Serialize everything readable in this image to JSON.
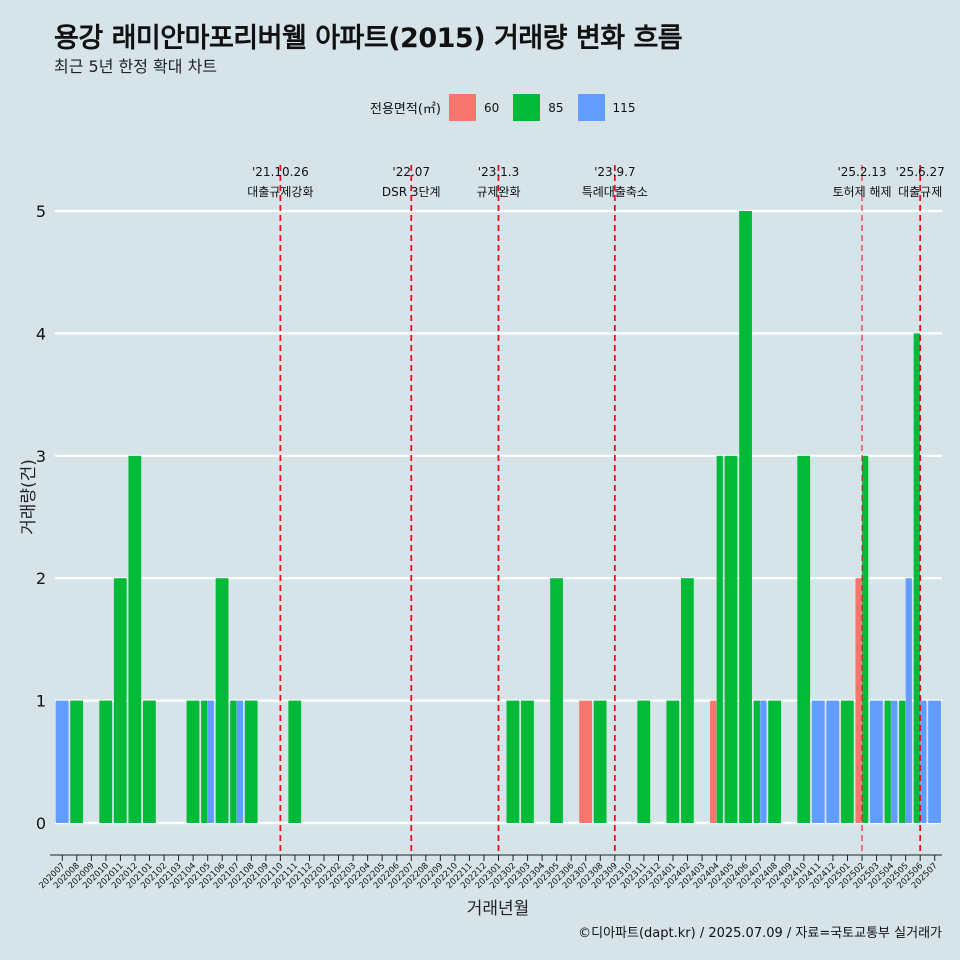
{
  "title": "용강 래미안마포리버웰 아파트(2015) 거래량 변화 흐름",
  "subtitle": "최근 5년 한정 확대 차트",
  "caption": "©디아파트(dapt.kr) / 2025.07.09 / 자료=국토교통부 실거래가",
  "legend": {
    "title": "전용면적(㎡)",
    "items": [
      {
        "label": "60",
        "color": "#f8766d"
      },
      {
        "label": "85",
        "color": "#00ba38"
      },
      {
        "label": "115",
        "color": "#619cff"
      }
    ]
  },
  "chart_data": {
    "type": "bar",
    "xlabel": "거래년월",
    "ylabel": "거래량(건)",
    "ylim": [
      0,
      5
    ],
    "yticks": [
      0,
      1,
      2,
      3,
      4,
      5
    ],
    "grid": true,
    "categories": [
      "202007",
      "202008",
      "202009",
      "202010",
      "202011",
      "202012",
      "202101",
      "202102",
      "202103",
      "202104",
      "202105",
      "202106",
      "202107",
      "202108",
      "202109",
      "202110",
      "202111",
      "202112",
      "202201",
      "202202",
      "202203",
      "202204",
      "202205",
      "202206",
      "202207",
      "202208",
      "202209",
      "202210",
      "202211",
      "202212",
      "202301",
      "202302",
      "202303",
      "202304",
      "202305",
      "202306",
      "202307",
      "202308",
      "202309",
      "202310",
      "202311",
      "202312",
      "202401",
      "202402",
      "202403",
      "202404",
      "202405",
      "202406",
      "202407",
      "202408",
      "202409",
      "202410",
      "202411",
      "202412",
      "202501",
      "202502",
      "202503",
      "202504",
      "202505",
      "202506",
      "202507"
    ],
    "series": [
      {
        "name": "60",
        "color": "#f8766d",
        "values": [
          0,
          0,
          0,
          0,
          0,
          0,
          0,
          0,
          0,
          0,
          0,
          0,
          0,
          0,
          0,
          0,
          0,
          0,
          0,
          0,
          0,
          0,
          0,
          0,
          0,
          0,
          0,
          0,
          0,
          0,
          0,
          0,
          0,
          0,
          0,
          0,
          1,
          0,
          0,
          0,
          0,
          0,
          0,
          0,
          0,
          1,
          0,
          0,
          0,
          0,
          0,
          0,
          0,
          0,
          0,
          2,
          0,
          0,
          0,
          0,
          0
        ]
      },
      {
        "name": "85",
        "color": "#00ba38",
        "values": [
          0,
          1,
          0,
          1,
          2,
          3,
          1,
          0,
          0,
          1,
          1,
          2,
          1,
          1,
          0,
          0,
          1,
          0,
          0,
          0,
          0,
          0,
          0,
          0,
          0,
          0,
          0,
          0,
          0,
          0,
          0,
          1,
          1,
          0,
          2,
          0,
          0,
          1,
          0,
          0,
          1,
          0,
          1,
          2,
          0,
          3,
          3,
          5,
          1,
          1,
          0,
          3,
          0,
          0,
          1,
          3,
          0,
          1,
          1,
          4,
          0
        ]
      },
      {
        "name": "115",
        "color": "#619cff",
        "values": [
          1,
          0,
          0,
          0,
          0,
          0,
          0,
          0,
          0,
          0,
          1,
          0,
          1,
          0,
          0,
          0,
          0,
          0,
          0,
          0,
          0,
          0,
          0,
          0,
          0,
          0,
          0,
          0,
          0,
          0,
          0,
          0,
          0,
          0,
          0,
          0,
          0,
          0,
          0,
          0,
          0,
          0,
          0,
          0,
          0,
          0,
          0,
          0,
          1,
          0,
          0,
          0,
          1,
          1,
          0,
          0,
          1,
          1,
          2,
          1,
          1
        ]
      }
    ],
    "annotations": [
      {
        "date": "'21.10.26",
        "label": "대출규제강화",
        "x_month": "202110"
      },
      {
        "date": "'22.07",
        "label": "DSR 3단계",
        "x_month": "202207"
      },
      {
        "date": "'23.1.3",
        "label": "규제완화",
        "x_month": "202301"
      },
      {
        "date": "'23.9.7",
        "label": "특례대출축소",
        "x_month": "202309"
      },
      {
        "date": "'25.2.13",
        "label": "토허제 해제",
        "x_month": "202502"
      },
      {
        "date": "'25.6.27",
        "label": "대출규제",
        "x_month": "202506"
      }
    ]
  }
}
